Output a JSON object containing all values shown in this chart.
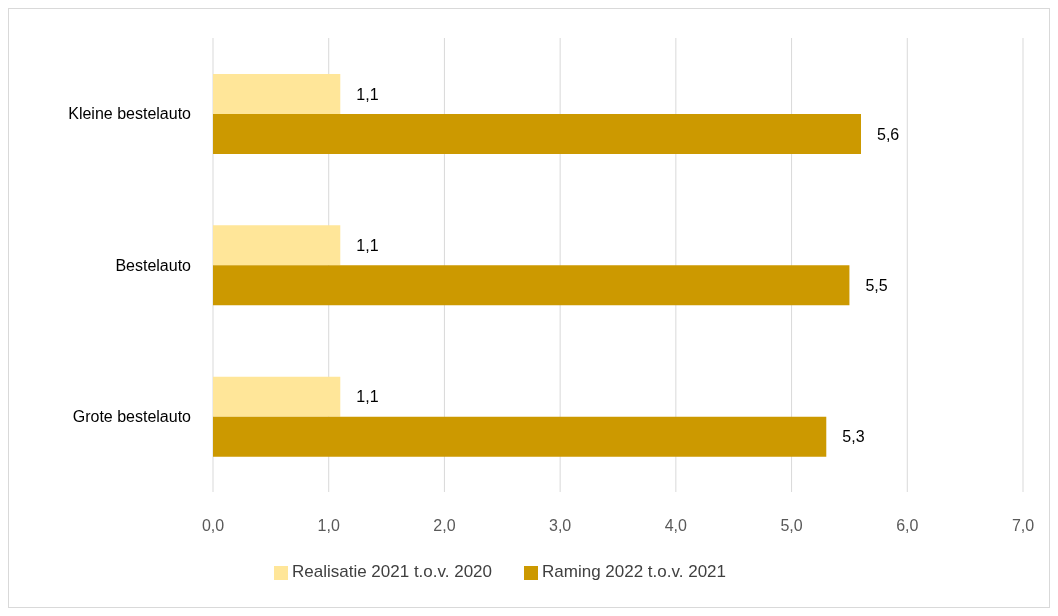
{
  "chart_data": {
    "type": "bar",
    "orientation": "horizontal",
    "categories": [
      "Kleine bestelauto",
      "Bestelauto",
      "Grote bestelauto"
    ],
    "series": [
      {
        "name": "Realisatie 2021 t.o.v. 2020",
        "color": "#ffe699",
        "values": [
          1.1,
          1.1,
          1.1
        ],
        "value_labels": [
          "1,1",
          "1,1",
          "1,1"
        ]
      },
      {
        "name": "Raming 2022 t.o.v. 2021",
        "color": "#cc9900",
        "values": [
          5.6,
          5.5,
          5.3
        ],
        "value_labels": [
          "5,6",
          "5,5",
          "5,3"
        ]
      }
    ],
    "xlim": [
      0,
      7
    ],
    "xticks": [
      {
        "value": 0,
        "label": "0,0"
      },
      {
        "value": 1,
        "label": "1,0"
      },
      {
        "value": 2,
        "label": "2,0"
      },
      {
        "value": 3,
        "label": "3,0"
      },
      {
        "value": 4,
        "label": "4,0"
      },
      {
        "value": 5,
        "label": "5,0"
      },
      {
        "value": 6,
        "label": "6,0"
      },
      {
        "value": 7,
        "label": "7,0"
      }
    ],
    "grid": "x",
    "legend": "bottom"
  }
}
